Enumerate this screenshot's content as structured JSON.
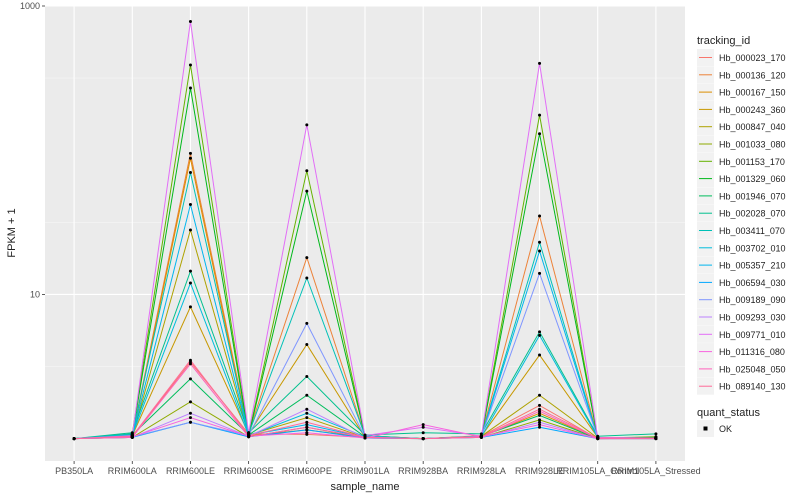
{
  "chart_data": {
    "type": "line",
    "title": "",
    "xlabel": "sample_name",
    "ylabel": "FPKM + 1",
    "yscale": "log10",
    "ylim": [
      0.7,
      1000
    ],
    "yticks": [
      10,
      1000
    ],
    "ytick_labels": [
      "10",
      "1000"
    ],
    "grid": true,
    "panel_background": "#EBEBEB",
    "categories": [
      "PB350LA",
      "RRIM600LA",
      "RRIM600LE",
      "RRIM600SE",
      "RRIM600PE",
      "RRIM901LA",
      "RRIM928BA",
      "RRIM928LA",
      "RRIM928LE",
      "RRIM105LA_Control",
      "RRIM105LA_Stressed"
    ],
    "x_tick_labels": [
      "PB350LA",
      "RRIM600LA",
      "RRIM600LE",
      "RRIM600SE",
      "RRIM600PE",
      "RRIM901LA",
      "RRIM928BA",
      "RRIM928LA",
      "RRIM928LE",
      "RRIM105LA_Control",
      "RRIM105LA_Stressed"
    ],
    "legend": {
      "title": "tracking_id",
      "position": "right"
    },
    "series": [
      {
        "name": "Hb_000023_170",
        "color": "#F8766D",
        "values": [
          1,
          1.03,
          3.4,
          1.08,
          1.07,
          1.02,
          1,
          1.04,
          1.7,
          1,
          1.02
        ]
      },
      {
        "name": "Hb_000136_120",
        "color": "#EC8239",
        "values": [
          1,
          1.05,
          95,
          1.1,
          18,
          1.05,
          1,
          1.05,
          35,
          1.02,
          1
        ]
      },
      {
        "name": "Hb_000167_150",
        "color": "#DB8E00",
        "values": [
          1,
          1.02,
          88,
          1.05,
          1.15,
          1.02,
          1,
          1.03,
          1.5,
          1,
          1.01
        ]
      },
      {
        "name": "Hb_000243_360",
        "color": "#C79800",
        "values": [
          1,
          1.05,
          8.2,
          1.08,
          4.5,
          1.02,
          1,
          1.04,
          3.8,
          1.02,
          1.01
        ]
      },
      {
        "name": "Hb_000847_040",
        "color": "#AEA200",
        "values": [
          1,
          1.03,
          28,
          1.06,
          1.4,
          1.02,
          1,
          1.04,
          2.0,
          1.01,
          1.01
        ]
      },
      {
        "name": "Hb_001033_080",
        "color": "#8FAA00",
        "values": [
          1,
          1.02,
          1.8,
          1.03,
          1.2,
          1.01,
          1,
          1.02,
          1.35,
          1,
          1
        ]
      },
      {
        "name": "Hb_001153_170",
        "color": "#64B200",
        "values": [
          1,
          1.08,
          390,
          1.06,
          72,
          1.05,
          1,
          1.04,
          175,
          1.01,
          1.03
        ]
      },
      {
        "name": "Hb_001329_060",
        "color": "#00B81B",
        "values": [
          1,
          1.06,
          270,
          1.05,
          52,
          1.04,
          1,
          1.03,
          130,
          1.01,
          1.02
        ]
      },
      {
        "name": "Hb_001946_070",
        "color": "#00BD5C",
        "values": [
          1,
          1.06,
          2.6,
          1.06,
          2.0,
          1.03,
          1,
          1.04,
          1.45,
          1,
          1.01
        ]
      },
      {
        "name": "Hb_002028_070",
        "color": "#00C08E",
        "values": [
          1,
          1.1,
          14.5,
          1.1,
          2.7,
          1.06,
          1.1,
          1.08,
          5.5,
          1.04,
          1.08
        ]
      },
      {
        "name": "Hb_003411_070",
        "color": "#00C1B7",
        "values": [
          1,
          1.08,
          70,
          1.08,
          13,
          1.05,
          1,
          1.04,
          23,
          1.02,
          1.01
        ]
      },
      {
        "name": "Hb_003702_010",
        "color": "#00BDDC",
        "values": [
          1,
          1.06,
          12,
          1.05,
          1.5,
          1.03,
          1,
          1.03,
          5.2,
          1.02,
          1.01
        ]
      },
      {
        "name": "Hb_005357_210",
        "color": "#00B5EE",
        "values": [
          1,
          1.04,
          42,
          1.06,
          1.25,
          1.02,
          1,
          1.03,
          20,
          1.01,
          1
        ]
      },
      {
        "name": "Hb_006594_030",
        "color": "#00A7FF",
        "values": [
          1,
          1.02,
          1.3,
          1.03,
          1.15,
          1.01,
          1,
          1.02,
          1.2,
          1,
          1
        ]
      },
      {
        "name": "Hb_009189_090",
        "color": "#7F96FF",
        "values": [
          1,
          1.03,
          1.3,
          1.05,
          6.3,
          1.03,
          1,
          1.04,
          14,
          1.02,
          1.01
        ]
      },
      {
        "name": "Hb_009293_030",
        "color": "#BC81FF",
        "values": [
          1,
          1.02,
          1.5,
          1.04,
          1.6,
          1.01,
          1,
          1.02,
          1.3,
          1,
          1
        ]
      },
      {
        "name": "Hb_009771_010",
        "color": "#E26EF7",
        "values": [
          1,
          1.05,
          780,
          1.1,
          150,
          1.05,
          1.2,
          1.04,
          400,
          1.02,
          1.01
        ]
      },
      {
        "name": "Hb_011316_080",
        "color": "#F863DF",
        "values": [
          1,
          1.03,
          1.4,
          1.04,
          1.1,
          1.01,
          1.25,
          1.03,
          1.25,
          1,
          1.01
        ]
      },
      {
        "name": "Hb_025048_050",
        "color": "#FF62BC",
        "values": [
          1,
          1.02,
          3.3,
          1.03,
          1.2,
          1.02,
          1,
          1.02,
          1.55,
          1,
          1
        ]
      },
      {
        "name": "Hb_089140_130",
        "color": "#FF6A98",
        "values": [
          1,
          1.04,
          3.5,
          1.05,
          1.3,
          1.02,
          1,
          1.03,
          1.6,
          1.01,
          1.01
        ]
      }
    ],
    "shape_legend": {
      "title": "quant_status",
      "items": [
        "OK"
      ]
    }
  }
}
